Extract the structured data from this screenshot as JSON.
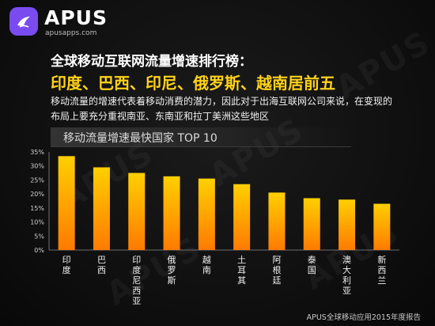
{
  "brand": {
    "name": "APUS",
    "website": "apusapps.com",
    "logo_color": "#7a4cf0"
  },
  "heading": {
    "line1": "全球移动互联网流量增速排行榜：",
    "line2": "印度、巴西、印尼、俄罗斯、越南居前五",
    "line2_color": "#ffd21a"
  },
  "description": {
    "line1": "移动流量的增速代表着移动消费的潜力，因此对于出海互联网公司来说，在变现的",
    "line2": "布局上要充分重视南亚、东南亚和拉丁美洲这些地区"
  },
  "chart_data": {
    "type": "bar",
    "title": "移动流量增速最快国家 TOP 10",
    "categories": [
      "印度",
      "巴西",
      "印度尼西亚",
      "俄罗斯",
      "越南",
      "土耳其",
      "阿根廷",
      "泰国",
      "澳大利亚",
      "新西兰"
    ],
    "values": [
      33.5,
      29.5,
      27.5,
      26.3,
      25.5,
      23.5,
      20.5,
      18.5,
      18.0,
      16.5
    ],
    "value_unit": "%",
    "ylim": [
      0,
      35
    ],
    "yticks": [
      "0%",
      "5%",
      "10%",
      "15%",
      "20%",
      "25%",
      "30%",
      "35%"
    ],
    "xlabel": "",
    "ylabel": "",
    "grid": false,
    "bar_gradient": [
      "#ffd000",
      "#ff7a00"
    ]
  },
  "footer": {
    "source": "APUS全球移动应用2015年度报告"
  }
}
